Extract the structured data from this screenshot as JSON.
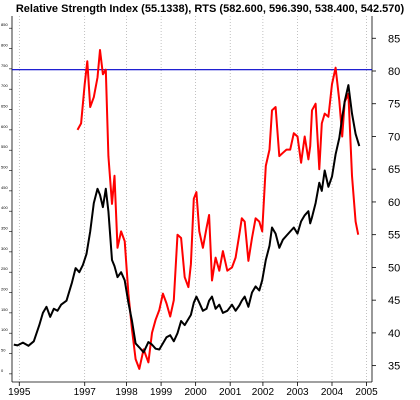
{
  "chart_data": {
    "type": "line",
    "title": "Relative Strength Index (55.1338), RTS (582.600, 596.390, 538.400, 542.570)",
    "x_tick_labels": [
      "1995",
      "1997",
      "1998",
      "1999",
      "2000",
      "2001",
      "2002",
      "2003",
      "2004",
      "2005"
    ],
    "x_tick_positions": [
      1995.0,
      1996.8,
      1997.95,
      1998.9,
      1999.85,
      2000.8,
      2001.7,
      2002.65,
      2003.6,
      2004.55
    ],
    "xlim": [
      1994.8,
      2004.7
    ],
    "right_axis": {
      "ticks": [
        35,
        40,
        45,
        50,
        55,
        60,
        65,
        70,
        75,
        80,
        85
      ],
      "ylim": [
        32.5,
        88.4
      ]
    },
    "left_axis": {
      "ticks": [
        "0",
        "50",
        "100",
        "150",
        "200",
        "250",
        "300",
        "350",
        "400",
        "450",
        "500",
        "550",
        "600",
        "650",
        "700",
        "750",
        "800",
        "850"
      ],
      "ylim": [
        -20,
        880
      ]
    },
    "reference_line": {
      "axis": "right",
      "value": 80.2,
      "color": "#0000cc"
    },
    "grid": "vertical dotted",
    "series": [
      {
        "color": "#ff0000",
        "axis": "right",
        "x": [
          1996.6,
          1996.7,
          1996.8,
          1996.87,
          1996.95,
          1997.05,
          1997.15,
          1997.22,
          1997.3,
          1997.38,
          1997.45,
          1997.55,
          1997.62,
          1997.7,
          1997.8,
          1997.9,
          1998.0,
          1998.1,
          1998.2,
          1998.3,
          1998.42,
          1998.55,
          1998.65,
          1998.75,
          1998.85,
          1998.95,
          1999.05,
          1999.15,
          1999.25,
          1999.35,
          1999.45,
          1999.55,
          1999.65,
          1999.72,
          1999.8,
          1999.87,
          1999.95,
          2000.05,
          2000.15,
          2000.22,
          2000.3,
          2000.4,
          2000.5,
          2000.6,
          2000.72,
          2000.85,
          2000.95,
          2001.05,
          2001.12,
          2001.2,
          2001.3,
          2001.4,
          2001.5,
          2001.6,
          2001.68,
          2001.78,
          2001.88,
          2001.95,
          2002.05,
          2002.15,
          2002.25,
          2002.35,
          2002.45,
          2002.55,
          2002.65,
          2002.75,
          2002.85,
          2002.95,
          2003.0,
          2003.05,
          2003.15,
          2003.25,
          2003.32,
          2003.4,
          2003.5,
          2003.6,
          2003.7,
          2003.8,
          2003.88,
          2003.95,
          2004.05,
          2004.15,
          2004.25,
          2004.32
        ],
        "y": [
          71,
          72,
          78,
          81.5,
          74.5,
          76,
          79,
          83.2,
          79.5,
          80.2,
          67,
          59.7,
          64,
          53,
          55.5,
          54,
          46,
          40.5,
          36,
          34.5,
          37.5,
          35.5,
          40,
          42,
          43.5,
          46,
          44.5,
          42.5,
          45,
          55,
          54.5,
          48.5,
          47,
          50.5,
          60.5,
          61.5,
          55.5,
          53,
          56,
          58,
          48,
          51.5,
          49.5,
          52.5,
          49.5,
          50,
          51.5,
          55,
          57.5,
          57,
          51,
          54.5,
          57.5,
          57,
          55.5,
          65.5,
          68,
          74,
          74.5,
          67,
          67.5,
          68,
          68,
          70.5,
          70,
          66,
          70,
          66.5,
          68.5,
          74,
          75,
          65,
          72,
          73.5,
          73,
          78,
          80.5,
          75.5,
          70,
          75.3,
          76.5,
          64,
          57,
          55
        ]
      },
      {
        "color": "#000000",
        "axis": "left",
        "x": [
          1994.85,
          1994.95,
          1995.1,
          1995.25,
          1995.4,
          1995.55,
          1995.65,
          1995.75,
          1995.85,
          1995.95,
          1996.05,
          1996.15,
          1996.3,
          1996.45,
          1996.55,
          1996.65,
          1996.75,
          1996.85,
          1996.95,
          1997.05,
          1997.15,
          1997.22,
          1997.3,
          1997.38,
          1997.45,
          1997.55,
          1997.62,
          1997.7,
          1997.8,
          1997.9,
          1998.0,
          1998.1,
          1998.2,
          1998.3,
          1998.42,
          1998.55,
          1998.65,
          1998.75,
          1998.85,
          1998.95,
          1999.05,
          1999.15,
          1999.25,
          1999.35,
          1999.45,
          1999.55,
          1999.65,
          1999.72,
          1999.8,
          1999.87,
          1999.95,
          2000.05,
          2000.15,
          2000.22,
          2000.3,
          2000.4,
          2000.5,
          2000.6,
          2000.72,
          2000.85,
          2000.95,
          2001.05,
          2001.12,
          2001.2,
          2001.3,
          2001.4,
          2001.5,
          2001.6,
          2001.68,
          2001.78,
          2001.88,
          2001.95,
          2002.05,
          2002.15,
          2002.25,
          2002.35,
          2002.45,
          2002.55,
          2002.65,
          2002.75,
          2002.85,
          2002.95,
          2003.0,
          2003.05,
          2003.15,
          2003.25,
          2003.32,
          2003.4,
          2003.5,
          2003.6,
          2003.7,
          2003.8,
          2003.88,
          2003.95,
          2004.05,
          2004.15,
          2004.25,
          2004.35
        ],
        "y": [
          72,
          70,
          77,
          69,
          80,
          120,
          150,
          165,
          140,
          160,
          155,
          170,
          180,
          225,
          260,
          250,
          268,
          295,
          350,
          420,
          455,
          440,
          410,
          455,
          400,
          280,
          265,
          238,
          250,
          230,
          175,
          130,
          75,
          65,
          53,
          78,
          72,
          62,
          60,
          75,
          90,
          95,
          80,
          100,
          130,
          120,
          135,
          145,
          175,
          190,
          175,
          155,
          160,
          180,
          190,
          160,
          170,
          150,
          155,
          170,
          155,
          168,
          180,
          190,
          165,
          200,
          215,
          205,
          230,
          280,
          315,
          360,
          345,
          310,
          330,
          340,
          350,
          360,
          345,
          375,
          390,
          400,
          370,
          385,
          420,
          470,
          450,
          500,
          460,
          485,
          540,
          580,
          630,
          670,
          710,
          640,
          590,
          560
        ]
      }
    ]
  }
}
